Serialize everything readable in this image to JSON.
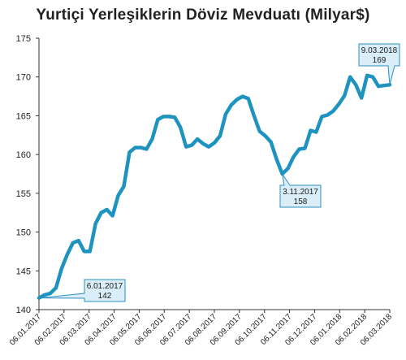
{
  "title": "Yurtiçi Yerleşiklerin Döviz Mevduatı (Milyar$)",
  "colors": {
    "line": "#1f93c0",
    "callout_fill": "#d9eef8",
    "callout_stroke": "#2b8fbf",
    "axis": "#333333"
  },
  "chart_data": {
    "type": "line",
    "title": "Yurtiçi Yerleşiklerin Döviz Mevduatı (Milyar$)",
    "xlabel": "",
    "ylabel": "",
    "ylim": [
      140,
      175
    ],
    "yticks": [
      140,
      145,
      150,
      155,
      160,
      165,
      170,
      175
    ],
    "grid": false,
    "x_tick_labels": [
      "06.01.2017",
      "06.02.2017",
      "06.03.2017",
      "06.04.2017",
      "06.05.2017",
      "06.06.2017",
      "06.07.2017",
      "06.08.2017",
      "06.09.2017",
      "06.10.2017",
      "06.11.2017",
      "06.12.2017",
      "06.01.2018",
      "06.02.2018",
      "06.03.2018"
    ],
    "series": [
      {
        "values": [
          141.5,
          141.9,
          142.1,
          142.8,
          145.3,
          147.1,
          148.6,
          148.9,
          147.5,
          147.5,
          151.1,
          152.5,
          152.9,
          152.1,
          154.7,
          155.9,
          160.3,
          160.9,
          160.9,
          160.7,
          162.0,
          164.5,
          164.9,
          164.9,
          164.8,
          163.5,
          161.0,
          161.2,
          162.0,
          161.4,
          161.0,
          161.5,
          162.4,
          165.2,
          166.4,
          167.1,
          167.5,
          167.2,
          165.0,
          163.0,
          162.4,
          161.6,
          159.4,
          157.5,
          158.2,
          159.7,
          160.7,
          160.8,
          163.1,
          162.9,
          164.9,
          165.1,
          165.6,
          166.5,
          167.6,
          170.0,
          169.0,
          167.3,
          170.2,
          170.0,
          168.8,
          168.9,
          169.0
        ]
      }
    ],
    "annotations": [
      {
        "date": "6.01.2017",
        "value": "142",
        "point_index": 0
      },
      {
        "date": "3.11.2017",
        "value": "158",
        "point_index": 43
      },
      {
        "date": "9.03.2018",
        "value": "169",
        "point_index": 62
      }
    ]
  }
}
